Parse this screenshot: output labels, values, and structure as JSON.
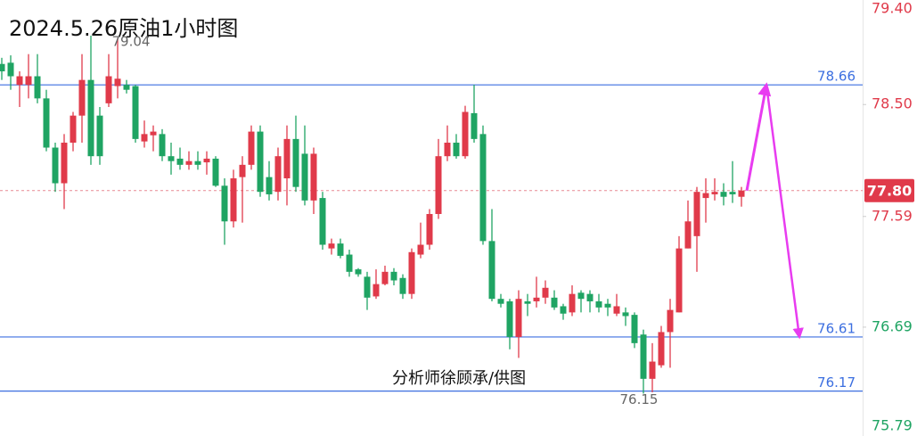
{
  "chart_data": {
    "type": "candlestick",
    "title": "2024.5.26原油1小时图",
    "watermark": "分析师徐顾承/供图",
    "up_color": "#e03a4a",
    "down_color": "#1fa463",
    "ylim": [
      75.805,
      79.35
    ],
    "yticks": [
      {
        "value": 79.4,
        "label": "79.40"
      },
      {
        "value": 78.5,
        "label": "78.50"
      },
      77.59,
      76.69,
      75.79
    ],
    "ytick_colors": [
      "#e03a4a",
      "#e03a4a",
      "#e03a4a",
      "#1fa463",
      "#1fa463"
    ],
    "levels": [
      78.66,
      76.61,
      76.17
    ],
    "level_color": "#3c6fe0",
    "last_price": {
      "value": 77.8,
      "label": "77.80"
    },
    "annotations": [
      79.04,
      76.15
    ],
    "projection": [
      77.8,
      78.66,
      76.61
    ],
    "projection_color": "#e83cf0",
    "ohlc": [
      [
        78.83,
        78.88,
        78.7,
        78.77
      ],
      [
        78.84,
        78.9,
        78.62,
        78.73
      ],
      [
        78.66,
        78.77,
        78.48,
        78.73
      ],
      [
        78.66,
        78.91,
        78.55,
        78.73
      ],
      [
        78.73,
        78.91,
        78.51,
        78.55
      ],
      [
        78.55,
        78.62,
        78.12,
        78.15
      ],
      [
        78.15,
        78.19,
        77.79,
        77.86
      ],
      [
        77.86,
        78.26,
        77.65,
        78.19
      ],
      [
        78.19,
        78.44,
        78.12,
        78.41
      ],
      [
        78.41,
        78.91,
        78.19,
        78.7
      ],
      [
        78.7,
        79.06,
        78.01,
        78.08
      ],
      [
        78.41,
        78.48,
        78.01,
        78.08
      ],
      [
        78.51,
        78.91,
        78.48,
        78.73
      ],
      [
        78.65,
        79.04,
        78.55,
        78.71
      ],
      [
        78.66,
        78.7,
        78.59,
        78.62
      ],
      [
        78.65,
        78.66,
        78.19,
        78.22
      ],
      [
        78.2,
        78.37,
        78.15,
        78.26
      ],
      [
        78.25,
        78.33,
        78.12,
        78.28
      ],
      [
        78.26,
        78.3,
        78.04,
        78.08
      ],
      [
        78.08,
        78.19,
        77.93,
        78.04
      ],
      [
        78.06,
        78.15,
        77.97,
        78.01
      ],
      [
        78.01,
        78.12,
        77.97,
        78.04
      ],
      [
        78.04,
        78.12,
        77.97,
        78.01
      ],
      [
        78.03,
        78.12,
        77.93,
        78.06
      ],
      [
        78.06,
        78.08,
        77.83,
        77.84
      ],
      [
        77.84,
        77.9,
        77.36,
        77.55
      ],
      [
        77.55,
        77.97,
        77.5,
        77.9
      ],
      [
        77.91,
        78.08,
        77.54,
        78.01
      ],
      [
        78.01,
        78.33,
        77.97,
        78.28
      ],
      [
        78.28,
        78.33,
        77.75,
        77.79
      ],
      [
        77.91,
        78.04,
        77.72,
        77.77
      ],
      [
        77.79,
        78.15,
        77.72,
        78.08
      ],
      [
        77.9,
        78.33,
        77.68,
        78.22
      ],
      [
        78.22,
        78.41,
        77.79,
        77.83
      ],
      [
        78.1,
        78.33,
        77.68,
        77.72
      ],
      [
        77.72,
        78.15,
        77.61,
        78.1
      ],
      [
        77.74,
        77.79,
        77.32,
        77.36
      ],
      [
        77.33,
        77.41,
        77.28,
        77.37
      ],
      [
        77.37,
        77.41,
        77.25,
        77.27
      ],
      [
        77.28,
        77.32,
        77.1,
        77.14
      ],
      [
        77.16,
        77.17,
        77.1,
        77.12
      ],
      [
        77.1,
        77.14,
        76.83,
        76.93
      ],
      [
        76.94,
        77.16,
        76.92,
        77.04
      ],
      [
        77.04,
        77.19,
        77.03,
        77.14
      ],
      [
        77.14,
        77.17,
        77.03,
        77.07
      ],
      [
        77.09,
        77.12,
        76.92,
        76.96
      ],
      [
        76.96,
        77.33,
        76.92,
        77.3
      ],
      [
        77.28,
        77.54,
        77.25,
        77.36
      ],
      [
        77.36,
        77.65,
        77.32,
        77.61
      ],
      [
        77.61,
        78.22,
        77.57,
        78.08
      ],
      [
        78.08,
        78.33,
        78.04,
        78.19
      ],
      [
        78.19,
        78.26,
        78.06,
        78.08
      ],
      [
        78.08,
        78.49,
        78.06,
        78.44
      ],
      [
        78.43,
        78.66,
        78.19,
        78.22
      ],
      [
        78.26,
        78.33,
        77.36,
        77.39
      ],
      [
        77.39,
        77.65,
        76.9,
        76.92
      ],
      [
        76.92,
        76.96,
        76.85,
        76.88
      ],
      [
        76.9,
        76.92,
        76.51,
        76.61
      ],
      [
        76.61,
        76.99,
        76.44,
        76.92
      ],
      [
        76.9,
        76.96,
        76.78,
        76.88
      ],
      [
        76.9,
        77.1,
        76.85,
        76.93
      ],
      [
        76.93,
        77.07,
        76.88,
        77.01
      ],
      [
        76.93,
        76.99,
        76.83,
        76.85
      ],
      [
        76.86,
        76.88,
        76.75,
        76.8
      ],
      [
        76.81,
        77.03,
        76.78,
        76.96
      ],
      [
        76.97,
        76.99,
        76.81,
        76.92
      ],
      [
        76.96,
        76.99,
        76.81,
        76.9
      ],
      [
        76.9,
        76.96,
        76.81,
        76.85
      ],
      [
        76.88,
        76.92,
        76.78,
        76.85
      ],
      [
        76.8,
        76.96,
        76.78,
        76.86
      ],
      [
        76.81,
        76.85,
        76.7,
        76.78
      ],
      [
        76.79,
        76.81,
        76.52,
        76.56
      ],
      [
        76.63,
        76.67,
        76.15,
        76.27
      ],
      [
        76.27,
        76.56,
        76.16,
        76.41
      ],
      [
        76.38,
        76.7,
        76.36,
        76.65
      ],
      [
        76.65,
        76.92,
        76.36,
        76.83
      ],
      [
        76.81,
        77.43,
        76.81,
        77.33
      ],
      [
        77.33,
        77.72,
        77.33,
        77.55
      ],
      [
        77.43,
        77.83,
        77.14,
        77.79
      ],
      [
        77.74,
        77.9,
        77.54,
        77.78
      ],
      [
        77.77,
        77.9,
        77.72,
        77.79
      ],
      [
        77.79,
        77.86,
        77.68,
        77.75
      ],
      [
        77.79,
        78.04,
        77.7,
        77.77
      ],
      [
        77.75,
        77.83,
        77.67,
        77.8
      ]
    ]
  }
}
